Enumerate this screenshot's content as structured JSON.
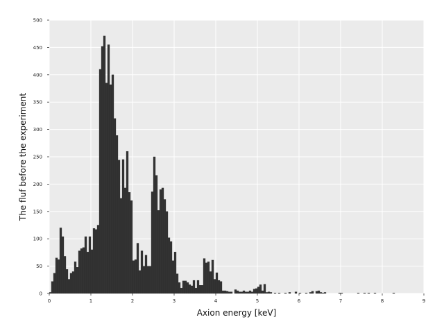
{
  "chart_data": {
    "type": "bar",
    "title": "",
    "xlabel": "Axion energy [keV]",
    "ylabel": "The fluf before the experiment",
    "xlim": [
      0,
      9
    ],
    "ylim": [
      0,
      500
    ],
    "x_ticks": [
      "0",
      "1",
      "2",
      "3",
      "4",
      "5",
      "6",
      "7",
      "8",
      "9"
    ],
    "y_ticks": [
      "0",
      "50",
      "100",
      "150",
      "200",
      "250",
      "300",
      "350",
      "400",
      "450",
      "500"
    ],
    "grid": true,
    "legend": "none",
    "colors": {
      "background": "#ebebeb",
      "grid": "#ffffff",
      "bar": "#333333"
    },
    "bin_width": 0.05,
    "bin_start": 0,
    "values": [
      2,
      22,
      37,
      65,
      62,
      120,
      104,
      68,
      44,
      26,
      37,
      40,
      58,
      48,
      78,
      82,
      84,
      104,
      76,
      104,
      80,
      119,
      117,
      125,
      410,
      452,
      471,
      385,
      455,
      382,
      400,
      320,
      289,
      244,
      174,
      245,
      193,
      260,
      185,
      170,
      60,
      62,
      92,
      42,
      78,
      50,
      70,
      50,
      50,
      186,
      250,
      216,
      152,
      190,
      193,
      172,
      150,
      102,
      95,
      60,
      76,
      36,
      20,
      10,
      23,
      23,
      20,
      16,
      14,
      24,
      10,
      24,
      15,
      15,
      64,
      56,
      58,
      40,
      61,
      26,
      38,
      24,
      22,
      5,
      5,
      4,
      3,
      3,
      0,
      7,
      5,
      3,
      3,
      5,
      3,
      3,
      5,
      3,
      8,
      9,
      12,
      16,
      5,
      17,
      2,
      3,
      2,
      0,
      1,
      0,
      1,
      0,
      0,
      1,
      0,
      2,
      0,
      0,
      3,
      0,
      1,
      0,
      0,
      1,
      0,
      2,
      4,
      0,
      4,
      5,
      2,
      1,
      2,
      0,
      0,
      0,
      0,
      0,
      0,
      1,
      1,
      0,
      0,
      0,
      0,
      0,
      0,
      0,
      1,
      0,
      0,
      1,
      0,
      1,
      0,
      0,
      1,
      0,
      0,
      0,
      0,
      0,
      0,
      0,
      0,
      1,
      0,
      0,
      0,
      0,
      0,
      0,
      0,
      0,
      0,
      0,
      0,
      0,
      0,
      0
    ]
  }
}
